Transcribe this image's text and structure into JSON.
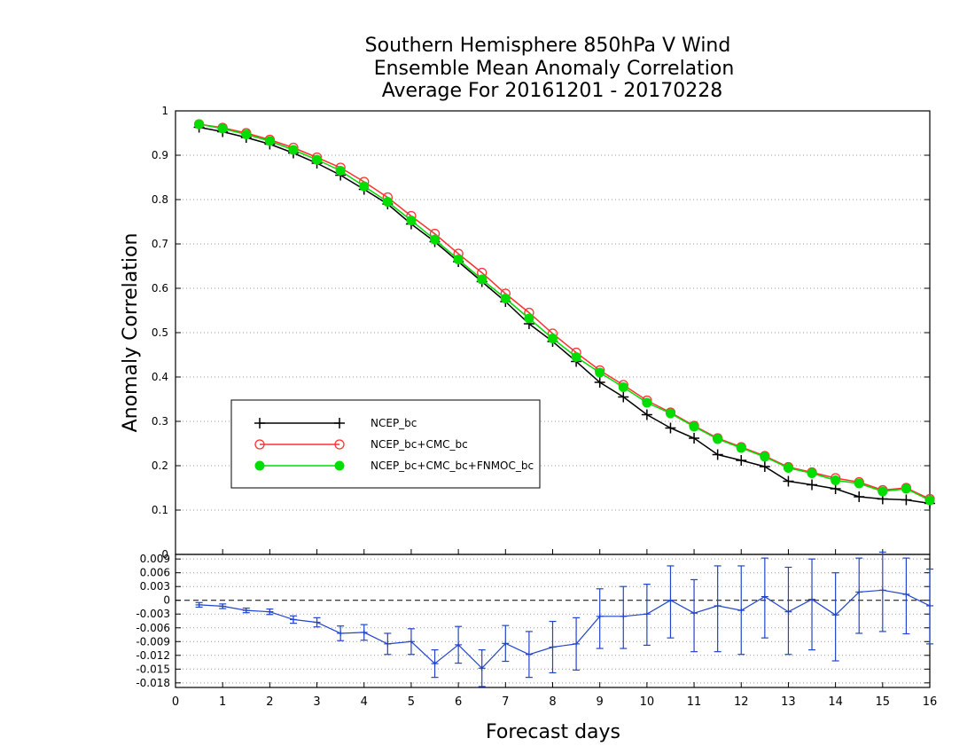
{
  "chart_data": [
    {
      "type": "line",
      "title": [
        "Southern Hemisphere 850hPa V Wind",
        "Ensemble Mean Anomaly Correlation",
        "Average For 20161201 - 20170228"
      ],
      "xlabel": "Forecast days",
      "ylabel": "Anomaly Correlation",
      "xlim": [
        0,
        16
      ],
      "ylim": [
        0,
        1
      ],
      "x_ticks": [
        0,
        1,
        2,
        3,
        4,
        5,
        6,
        7,
        8,
        9,
        10,
        11,
        12,
        13,
        14,
        15,
        16
      ],
      "y_ticks": [
        0.1,
        0.2,
        0.3,
        0.4,
        0.5,
        0.6,
        0.7,
        0.8,
        0.9,
        1
      ],
      "y_tick_labels": [
        "0.1",
        "0.2",
        "0.3",
        "0.4",
        "0.5",
        "0.6",
        "0.7",
        "0.8",
        "0.9",
        "1"
      ],
      "grid": "horizontal dotted",
      "legend_position": "lower-left",
      "x": [
        0.5,
        1,
        1.5,
        2,
        2.5,
        3,
        3.5,
        4,
        4.5,
        5,
        5.5,
        6,
        6.5,
        7,
        7.5,
        8,
        8.5,
        9,
        9.5,
        10,
        10.5,
        11,
        11.5,
        12,
        12.5,
        13,
        13.5,
        14,
        14.5,
        15,
        15.5,
        16
      ],
      "series": [
        {
          "name": "NCEP_bc",
          "color": "#000000",
          "marker": "plus",
          "values": [
            0.963,
            0.953,
            0.94,
            0.925,
            0.905,
            0.882,
            0.855,
            0.823,
            0.79,
            0.745,
            0.705,
            0.66,
            0.615,
            0.57,
            0.52,
            0.48,
            0.435,
            0.388,
            0.355,
            0.315,
            0.285,
            0.262,
            0.225,
            0.212,
            0.198,
            0.165,
            0.157,
            0.148,
            0.13,
            0.125,
            0.123,
            0.115
          ]
        },
        {
          "name": "NCEP_bc+CMC_bc",
          "color": "#ff3030",
          "marker": "open-circle",
          "values": [
            0.97,
            0.962,
            0.95,
            0.935,
            0.917,
            0.895,
            0.872,
            0.84,
            0.805,
            0.763,
            0.723,
            0.678,
            0.635,
            0.588,
            0.545,
            0.498,
            0.455,
            0.415,
            0.382,
            0.347,
            0.32,
            0.29,
            0.262,
            0.242,
            0.222,
            0.197,
            0.185,
            0.172,
            0.163,
            0.145,
            0.15,
            0.125
          ]
        },
        {
          "name": "NCEP_bc+CMC_bc+FNMOC_bc",
          "color": "#00dd00",
          "marker": "filled-circle",
          "values": [
            0.97,
            0.96,
            0.947,
            0.932,
            0.912,
            0.89,
            0.865,
            0.83,
            0.795,
            0.753,
            0.71,
            0.665,
            0.62,
            0.577,
            0.532,
            0.487,
            0.445,
            0.41,
            0.377,
            0.342,
            0.318,
            0.288,
            0.26,
            0.24,
            0.22,
            0.195,
            0.183,
            0.167,
            0.16,
            0.142,
            0.148,
            0.122
          ]
        }
      ]
    },
    {
      "type": "line",
      "xlim": [
        0,
        16
      ],
      "ylim": [
        -0.019,
        0.01
      ],
      "y_ticks": [
        0.009,
        0.006,
        0.003,
        0,
        -0.003,
        -0.006,
        -0.009,
        -0.012,
        -0.015,
        -0.018
      ],
      "y_tick_labels": [
        "0.009",
        "0.006",
        "0.003",
        "0",
        "-0.003",
        "-0.006",
        "-0.009",
        "-0.012",
        "-0.015",
        "-0.018"
      ],
      "top_label": "0",
      "grid": "horizontal dotted",
      "zero_line": "dashed",
      "x": [
        0.5,
        1,
        1.5,
        2,
        2.5,
        3,
        3.5,
        4,
        4.5,
        5,
        5.5,
        6,
        6.5,
        7,
        7.5,
        8,
        8.5,
        9,
        9.5,
        10,
        10.5,
        11,
        11.5,
        12,
        12.5,
        13,
        13.5,
        14,
        14.5,
        15,
        15.5,
        16
      ],
      "series": [
        {
          "color": "#2244cc",
          "marker": "plus",
          "values": [
            -0.001,
            -0.0013,
            -0.0022,
            -0.0025,
            -0.0042,
            -0.0048,
            -0.0072,
            -0.007,
            -0.0095,
            -0.009,
            -0.0138,
            -0.0097,
            -0.0148,
            -0.0094,
            -0.0118,
            -0.0102,
            -0.0095,
            -0.0035,
            -0.0035,
            -0.003,
            0,
            -0.0028,
            -0.0012,
            -0.0022,
            0.0008,
            -0.0025,
            0.0002,
            -0.0032,
            0.0018,
            0.0022,
            0.0013,
            -0.0012
          ],
          "error_low": [
            -0.0015,
            -0.0018,
            -0.0027,
            -0.0031,
            -0.005,
            -0.0058,
            -0.0088,
            -0.0087,
            -0.0118,
            -0.0118,
            -0.0168,
            -0.0137,
            -0.0188,
            -0.0133,
            -0.0168,
            -0.0158,
            -0.0152,
            -0.0105,
            -0.0105,
            -0.0098,
            -0.0082,
            -0.0112,
            -0.0112,
            -0.0118,
            -0.0082,
            -0.0118,
            -0.0108,
            -0.0132,
            -0.0072,
            -0.0068,
            -0.0073,
            -0.0095
          ],
          "error_high": [
            -0.0005,
            -0.0008,
            -0.0017,
            -0.0019,
            -0.0034,
            -0.0038,
            -0.0056,
            -0.0053,
            -0.0072,
            -0.0062,
            -0.0108,
            -0.0057,
            -0.0108,
            -0.0055,
            -0.0068,
            -0.0046,
            -0.0038,
            0.0025,
            0.003,
            0.0035,
            0.0075,
            0.0045,
            0.0075,
            0.0075,
            0.0092,
            0.0072,
            0.009,
            0.006,
            0.0092,
            0.0105,
            0.0092,
            0.0068
          ]
        }
      ]
    }
  ]
}
